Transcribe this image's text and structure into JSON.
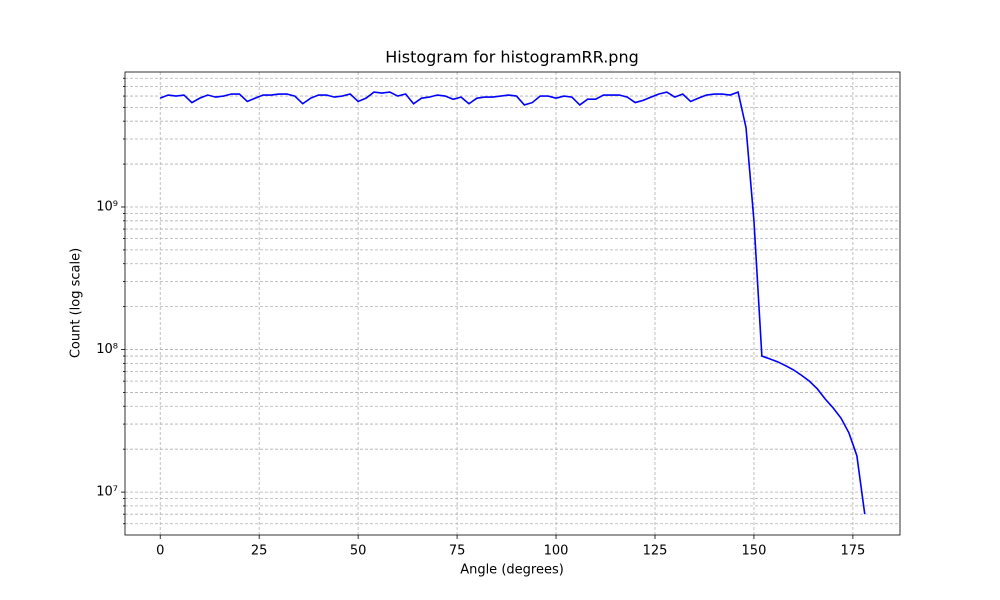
{
  "chart_data": {
    "type": "line",
    "title": "Histogram for histogramRR.png",
    "x_label": "Angle (degrees)",
    "y_label": "Count (log scale)",
    "y_scale": "log",
    "grid": true,
    "x": [
      0,
      2,
      4,
      6,
      8,
      10,
      12,
      14,
      16,
      18,
      20,
      22,
      24,
      26,
      28,
      30,
      32,
      34,
      36,
      38,
      40,
      42,
      44,
      46,
      48,
      50,
      52,
      54,
      56,
      58,
      60,
      62,
      64,
      66,
      68,
      70,
      72,
      74,
      76,
      78,
      80,
      82,
      84,
      86,
      88,
      90,
      92,
      94,
      96,
      98,
      100,
      102,
      104,
      106,
      108,
      110,
      112,
      114,
      116,
      118,
      120,
      122,
      124,
      126,
      128,
      130,
      132,
      134,
      136,
      138,
      140,
      142,
      144,
      146,
      148,
      150,
      152,
      154,
      156,
      158,
      160,
      162,
      164,
      166,
      168,
      170,
      172,
      174,
      176,
      178
    ],
    "series": [
      {
        "name": "Count",
        "color": "#0000ff",
        "values": [
          5800000000,
          6100000000,
          6000000000,
          6100000000,
          5400000000,
          5800000000,
          6100000000,
          5900000000,
          6000000000,
          6200000000,
          6200000000,
          5500000000,
          5800000000,
          6100000000,
          6100000000,
          6200000000,
          6200000000,
          6000000000,
          5300000000,
          5800000000,
          6100000000,
          6100000000,
          5900000000,
          6000000000,
          6200000000,
          5500000000,
          5800000000,
          6400000000,
          6300000000,
          6400000000,
          6000000000,
          6200000000,
          5300000000,
          5800000000,
          5900000000,
          6100000000,
          6000000000,
          5700000000,
          5900000000,
          5300000000,
          5800000000,
          5900000000,
          5900000000,
          6000000000,
          6100000000,
          6000000000,
          5200000000,
          5400000000,
          6000000000,
          6000000000,
          5800000000,
          6000000000,
          5900000000,
          5200000000,
          5700000000,
          5700000000,
          6100000000,
          6100000000,
          6100000000,
          5900000000,
          5400000000,
          5600000000,
          5900000000,
          6200000000,
          6400000000,
          5900000000,
          6200000000,
          5500000000,
          5800000000,
          6100000000,
          6200000000,
          6200000000,
          6100000000,
          6400000000,
          3600000000,
          800000000,
          90000000,
          86000000,
          82000000,
          77000000,
          72000000,
          66000000,
          60000000,
          53000000,
          45000000,
          39000000,
          33000000,
          26000000,
          18000000,
          7000000
        ]
      }
    ],
    "xlim": [
      -8.9,
      186.9
    ],
    "xticks": [
      0,
      25,
      50,
      75,
      100,
      125,
      150,
      175
    ],
    "ylim": [
      5000000,
      8850000000
    ],
    "yticks": [
      {
        "value": 10000000,
        "label": "10⁷"
      },
      {
        "value": 100000000,
        "label": "10⁸"
      },
      {
        "value": 1000000000,
        "label": "10⁹"
      }
    ],
    "y_minor_ticks": [
      6000000,
      7000000,
      8000000,
      9000000,
      20000000,
      30000000,
      40000000,
      50000000,
      60000000,
      70000000,
      80000000,
      90000000,
      200000000,
      300000000,
      400000000,
      500000000,
      600000000,
      700000000,
      800000000,
      900000000,
      2000000000,
      3000000000,
      4000000000,
      5000000000,
      6000000000,
      7000000000,
      8000000000
    ]
  }
}
